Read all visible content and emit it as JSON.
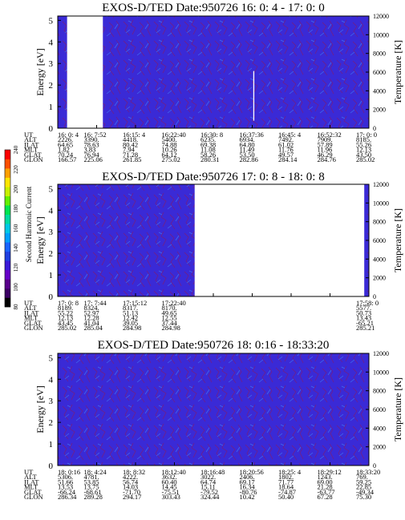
{
  "colorbar": {
    "label": "Second Harmonic Current",
    "ticks": [
      "240",
      "220",
      "200",
      "180",
      "160",
      "140",
      "120",
      "100",
      "80"
    ],
    "colors": [
      "#000000",
      "#3c0064",
      "#5a008c",
      "#6600c8",
      "#3a1ad8",
      "#2040e0",
      "#1a64ff",
      "#00a0ff",
      "#00c8e6",
      "#00dca0",
      "#00e650",
      "#64f000",
      "#c8f000",
      "#ffe600",
      "#ffa000",
      "#ff5000",
      "#ff0000"
    ]
  },
  "palette": {
    "background": "#3a2ad6",
    "speckle_dark": "#6a1f8f",
    "speckle_light": "#3c6cf0",
    "gap": "#ffffff"
  },
  "rows": [
    "UT",
    "ALT",
    "ILAT",
    "MLT",
    "GLAT",
    "GLON"
  ],
  "chart_data": [
    {
      "type": "heatmap",
      "title": "EXOS-D/TED   Date:950726  16: 0: 4 - 17: 0: 0",
      "ylabel": "Energy [eV]",
      "ylabel_right": "Temperature [K]",
      "ylim": [
        0,
        5.2
      ],
      "yticks": [
        "0",
        "1",
        "2",
        "3",
        "4",
        "5"
      ],
      "ylim_right": [
        0,
        12000
      ],
      "yticks_right": [
        "0",
        "2000",
        "4000",
        "6000",
        "8000",
        "10000",
        "12000"
      ],
      "data_gaps": [
        [
          0.03,
          0.145
        ]
      ],
      "spikes": [
        {
          "x": 0.63,
          "from": 0.35,
          "to": 2.65
        }
      ],
      "columns": [
        [
          "16: 0: 4",
          "2226.",
          "64.65",
          "1.82",
          "70.24",
          "166.57"
        ],
        [
          "16: 7:52",
          "3390.",
          "78.63",
          "3.83",
          "76.94",
          "225.06"
        ],
        [
          "16:15: 4",
          "4418.",
          "80.42",
          "7.94",
          "71.28",
          "261.85"
        ],
        [
          "16:22:40",
          "5400.",
          "74.88",
          "10.26",
          "64.12",
          "275.02"
        ],
        [
          "16:30: 8",
          "6235.",
          "69.38",
          "11.08",
          "58.26",
          "280.31"
        ],
        [
          "16:37:36",
          "6934.",
          "64.80",
          "11.49",
          "53.50",
          "282.86"
        ],
        [
          "16:45: 4",
          "7492.",
          "61.02",
          "11.76",
          "49.57",
          "284.14"
        ],
        [
          "16:52:32",
          "7909.",
          "57.89",
          "11.96",
          "46.29",
          "284.76"
        ],
        [
          "17: 0: 0",
          "8185.",
          "55.26",
          "12.13",
          "43.50",
          "285.02"
        ]
      ]
    },
    {
      "type": "heatmap",
      "title": "EXOS-D/TED   Date:950726  17: 0: 8 - 18: 0: 8",
      "ylabel": "Energy [eV]",
      "ylabel_right": "Temperature [K]",
      "ylim": [
        0,
        5.2
      ],
      "yticks": [
        "0",
        "1",
        "2",
        "3",
        "4",
        "5"
      ],
      "ylim_right": [
        0,
        12000
      ],
      "yticks_right": [
        "0",
        "2000",
        "4000",
        "6000",
        "8000",
        "10000",
        "12000"
      ],
      "data_gaps": [
        [
          0.44,
          0.985
        ]
      ],
      "spikes": [],
      "columns": [
        [
          "17: 0: 8",
          "8189.",
          "55.22",
          "12.13",
          "43.45",
          "285.02"
        ],
        [
          "17: 7:44",
          "8324.",
          "52.97",
          "12.28",
          "41.04",
          "285.04"
        ],
        [
          "17:15:12",
          "8317.",
          "51.13",
          "12.42",
          "39.05",
          "284.98"
        ],
        [
          "17:22:40",
          "8170.",
          "49.65",
          "12.55",
          "37.44",
          "284.98"
        ],
        [
          "",
          "",
          "",
          "",
          "",
          ""
        ],
        [
          "",
          "",
          "",
          "",
          "",
          ""
        ],
        [
          "",
          "",
          "",
          "",
          "",
          ""
        ],
        [
          "",
          "",
          "",
          "",
          "",
          ""
        ],
        [
          "17:58: 0",
          "5577.",
          "50.73",
          "13.43",
          "-65.21",
          "285.21"
        ]
      ]
    },
    {
      "type": "heatmap",
      "title": "EXOS-D/TED   Date:950726  18: 0:16 - 18:33:20",
      "ylabel": "Energy [eV]",
      "ylabel_right": "Temperature [K]",
      "ylim": [
        0,
        5.2
      ],
      "yticks": [
        "0",
        "1",
        "2",
        "3",
        "4",
        "5"
      ],
      "ylim_right": [
        0,
        12000
      ],
      "yticks_right": [
        "0",
        "2000",
        "4000",
        "6000",
        "8000",
        "10000",
        "12000"
      ],
      "data_gaps": [],
      "spikes": [],
      "columns": [
        [
          "18: 0:16",
          "5306.",
          "51.66",
          "13.53",
          "-66.24",
          "286.34"
        ],
        [
          "18: 4:24",
          "4781.",
          "53.85",
          "13.75",
          "-68.61",
          "289.28"
        ],
        [
          "18: 8:32",
          "4222.",
          "56.74",
          "14.03",
          "-71.70",
          "294.17"
        ],
        [
          "18:12:40",
          "3632.",
          "60.40",
          "14.45",
          "-75.51",
          "303.43"
        ],
        [
          "18:16:48",
          "3022.",
          "64.74",
          "15.11",
          "-79.52",
          "324.44"
        ],
        [
          "18:20:56",
          "2406.",
          "69.17",
          "16.34",
          "-80.76",
          "10.42"
        ],
        [
          "18:25: 4",
          "1802.",
          "71.77",
          "18.64",
          "-74.87",
          "50.40"
        ],
        [
          "18:29:12",
          "1243.",
          "69.00",
          "21.28",
          "-63.77",
          "67.28"
        ],
        [
          "18:33:20",
          "769.",
          "59.25",
          "22.85",
          "-49.34",
          "75.30"
        ]
      ]
    }
  ]
}
